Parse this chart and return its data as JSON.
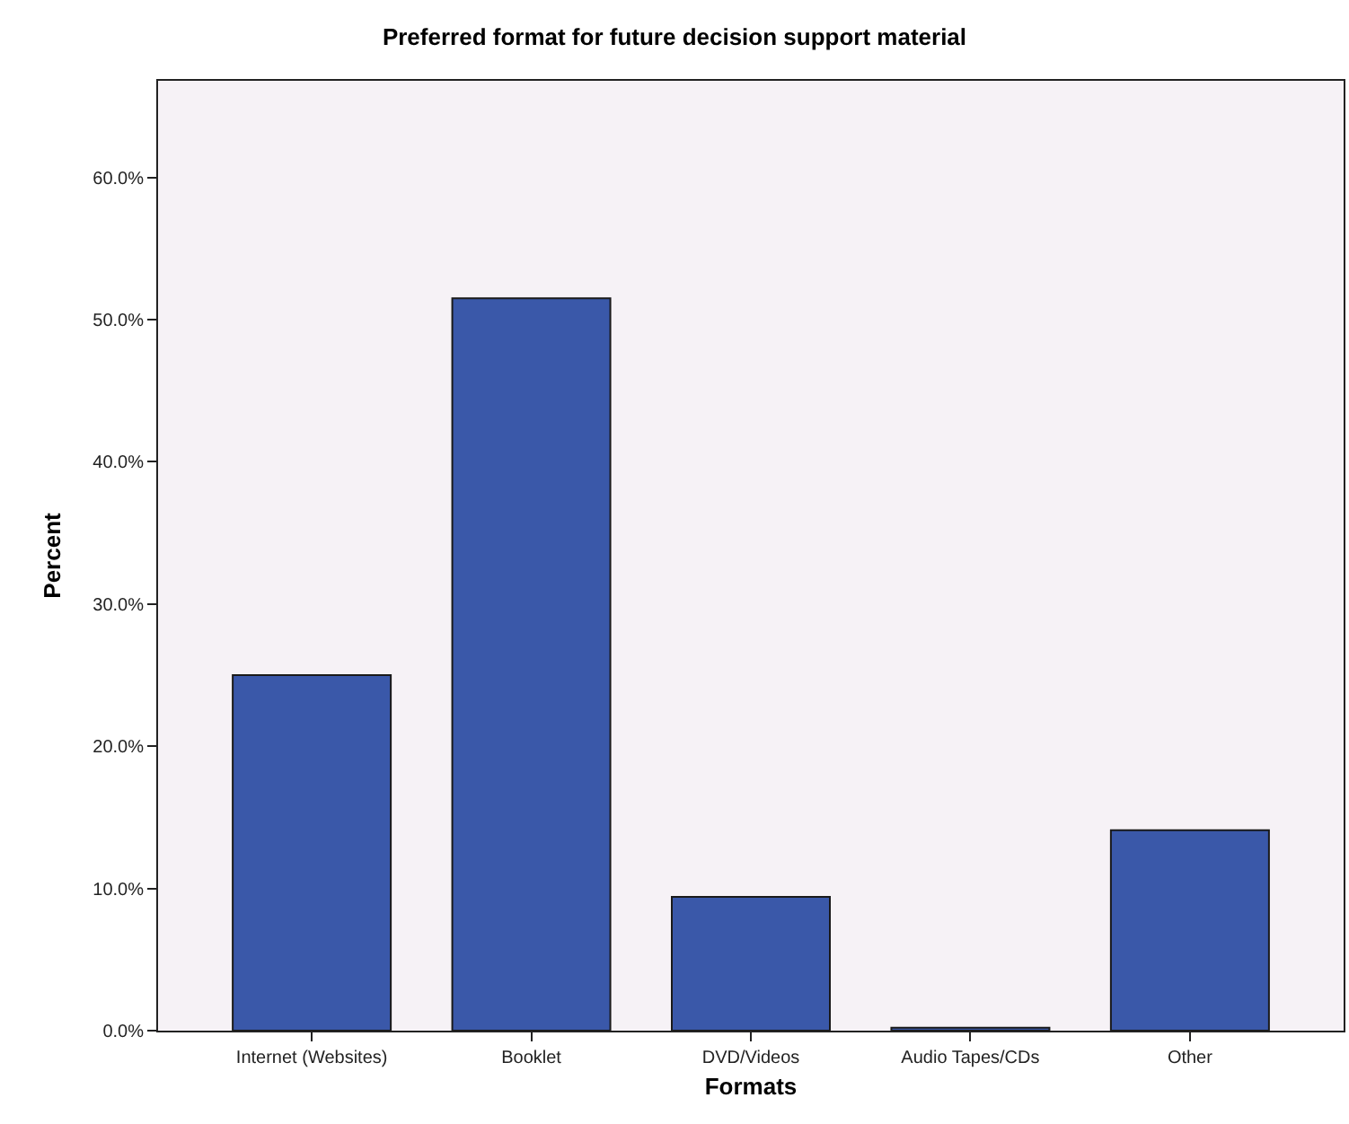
{
  "chart_data": {
    "type": "bar",
    "title": "Preferred format for future decision support material",
    "xlabel": "Formats",
    "ylabel": "Percent",
    "categories": [
      "Internet (Websites)",
      "Booklet",
      "DVD/Videos",
      "Audio Tapes/CDs",
      "Other"
    ],
    "values": [
      25.0,
      51.5,
      9.4,
      0.2,
      14.1
    ],
    "color": "#3a58a9",
    "ylim": [
      0,
      66.8
    ],
    "yticks": [
      {
        "value": 0,
        "label": "0.0%"
      },
      {
        "value": 10,
        "label": "10.0%"
      },
      {
        "value": 20,
        "label": "20.0%"
      },
      {
        "value": 30,
        "label": "30.0%"
      },
      {
        "value": 40,
        "label": "40.0%"
      },
      {
        "value": 50,
        "label": "50.0%"
      },
      {
        "value": 60,
        "label": "60.0%"
      }
    ],
    "grid": false,
    "legend": false
  }
}
